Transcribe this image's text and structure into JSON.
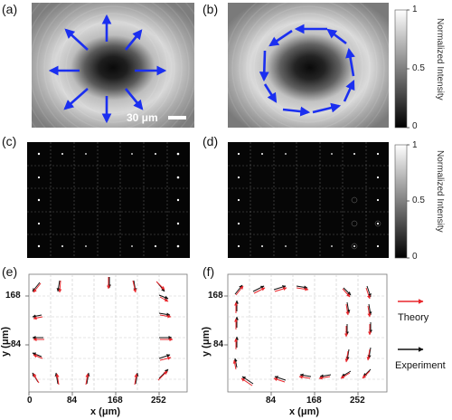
{
  "panels": {
    "a": "(a)",
    "b": "(b)",
    "c": "(c)",
    "d": "(d)",
    "e": "(e)",
    "f": "(f)"
  },
  "scale_bar": "30 μm",
  "colorbar": {
    "title": "Normalized Intensity",
    "ticks": [
      "1",
      "0.5",
      "0"
    ]
  },
  "axes": {
    "xlabel": "x (μm)",
    "ylabel": "y (μm)",
    "xticks": [
      "0",
      "84",
      "168",
      "252"
    ],
    "yticks": [
      "168",
      "84"
    ]
  },
  "legend": {
    "theory": "Theory",
    "experiment": "Experiment",
    "theory_color": "#e8262b",
    "experiment_color": "#111111"
  },
  "arrow_color": "#1b2ff0"
}
